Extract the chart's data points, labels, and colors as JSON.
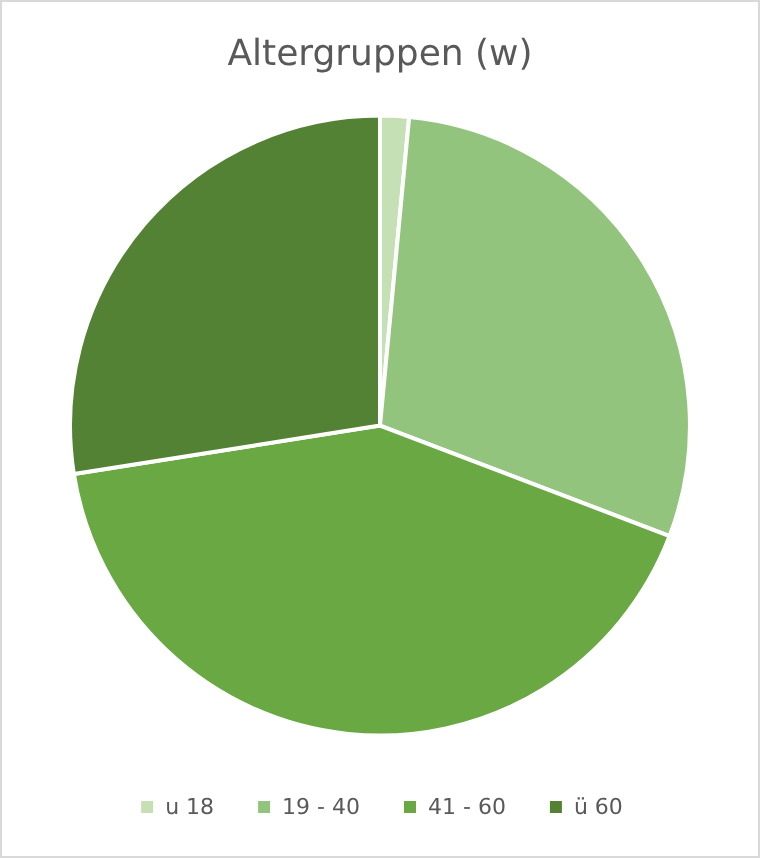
{
  "chart_data": {
    "type": "pie",
    "title": "Altergruppen (w)",
    "categories": [
      "u 18",
      "19 - 40",
      "41 - 60",
      "ü 60"
    ],
    "values": [
      1.5,
      29.3,
      41.7,
      27.5
    ],
    "colors": [
      "#c5e0b4",
      "#93c47d",
      "#6aa843",
      "#548235"
    ],
    "legend": "bottom"
  }
}
